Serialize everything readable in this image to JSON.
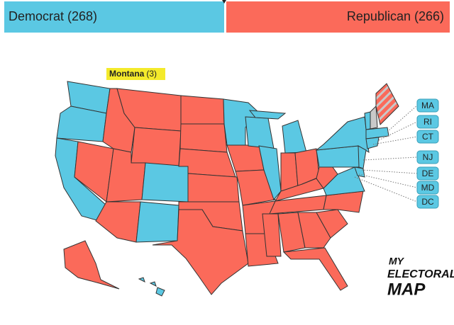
{
  "header": {
    "democrat": "Democrat (268)",
    "republican": "Republican (266)"
  },
  "tooltip": {
    "state": "Montana",
    "votes": "(3)"
  },
  "small_states": [
    "MA",
    "RI",
    "CT",
    "NJ",
    "DE",
    "MD",
    "DC"
  ],
  "logo": {
    "line1": "MY",
    "line2": "ELECTORAL",
    "line3": "MAP"
  }
}
